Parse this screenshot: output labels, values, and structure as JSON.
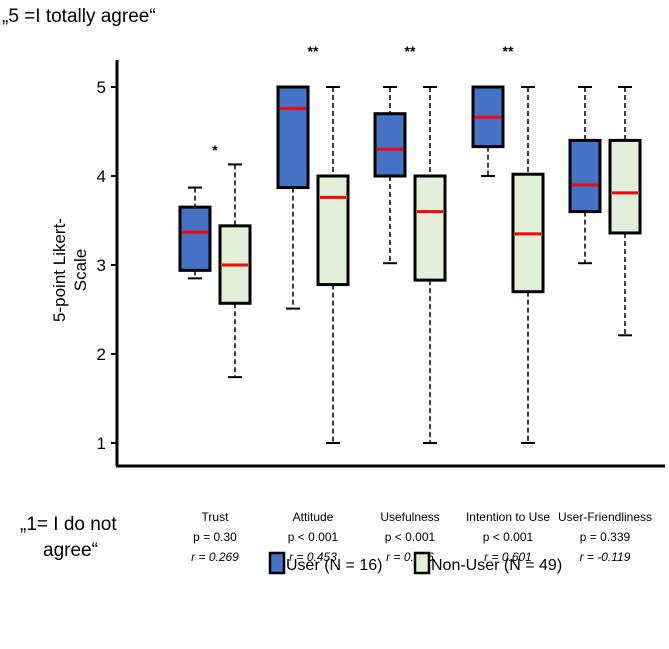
{
  "chart_data": {
    "type": "box",
    "title_top": "„5 =I totally agree“",
    "title_bottom": [
      "„1= I do not",
      "agree“"
    ],
    "ylabel": [
      "5-point Likert-",
      "Scale"
    ],
    "ylim": [
      1,
      5
    ],
    "yticks": [
      "1",
      "2",
      "3",
      "4",
      "5"
    ],
    "categories": [
      {
        "name": "Trust",
        "p": "p = 0.30",
        "r": "r = 0.269",
        "sig": "*"
      },
      {
        "name": "Attitude",
        "p": "p < 0.001",
        "r": "r = 0.453",
        "sig": "**"
      },
      {
        "name": "Usefulness",
        "p": "p < 0.001",
        "r": "r = 0.476",
        "sig": "**"
      },
      {
        "name": "Intention to Use",
        "p": "p < 0.001",
        "r": "r = 0.601",
        "sig": "**"
      },
      {
        "name": "User-Friendliness",
        "p": "p = 0.339",
        "r": "r = -0.119",
        "sig": ""
      }
    ],
    "series": [
      {
        "name": "User (N = 16)",
        "color": "#4472c4",
        "boxes": [
          {
            "min": 2.85,
            "q1": 2.94,
            "median": 3.37,
            "q3": 3.65,
            "max": 3.87
          },
          {
            "min": 2.51,
            "q1": 3.87,
            "median": 4.76,
            "q3": 5,
            "max": 5
          },
          {
            "min": 3.02,
            "q1": 4.0,
            "median": 4.3,
            "q3": 4.7,
            "max": 5
          },
          {
            "min": 4.0,
            "q1": 4.33,
            "median": 4.66,
            "q3": 5,
            "max": 5
          },
          {
            "min": 3.02,
            "q1": 3.6,
            "median": 3.9,
            "q3": 4.4,
            "max": 5
          }
        ]
      },
      {
        "name": "Non-User (N = 49)",
        "color": "#e2efd9",
        "boxes": [
          {
            "min": 1.74,
            "q1": 2.57,
            "median": 3.0,
            "q3": 3.44,
            "max": 4.13
          },
          {
            "min": 1,
            "q1": 2.78,
            "median": 3.76,
            "q3": 4.0,
            "max": 5
          },
          {
            "min": 1,
            "q1": 2.83,
            "median": 3.6,
            "q3": 4.0,
            "max": 5
          },
          {
            "min": 1,
            "q1": 2.7,
            "median": 3.35,
            "q3": 4.02,
            "max": 5
          },
          {
            "min": 2.21,
            "q1": 3.36,
            "median": 3.81,
            "q3": 4.4,
            "max": 5
          }
        ]
      }
    ],
    "median_color": "#ff0000",
    "legend": "bottom"
  }
}
